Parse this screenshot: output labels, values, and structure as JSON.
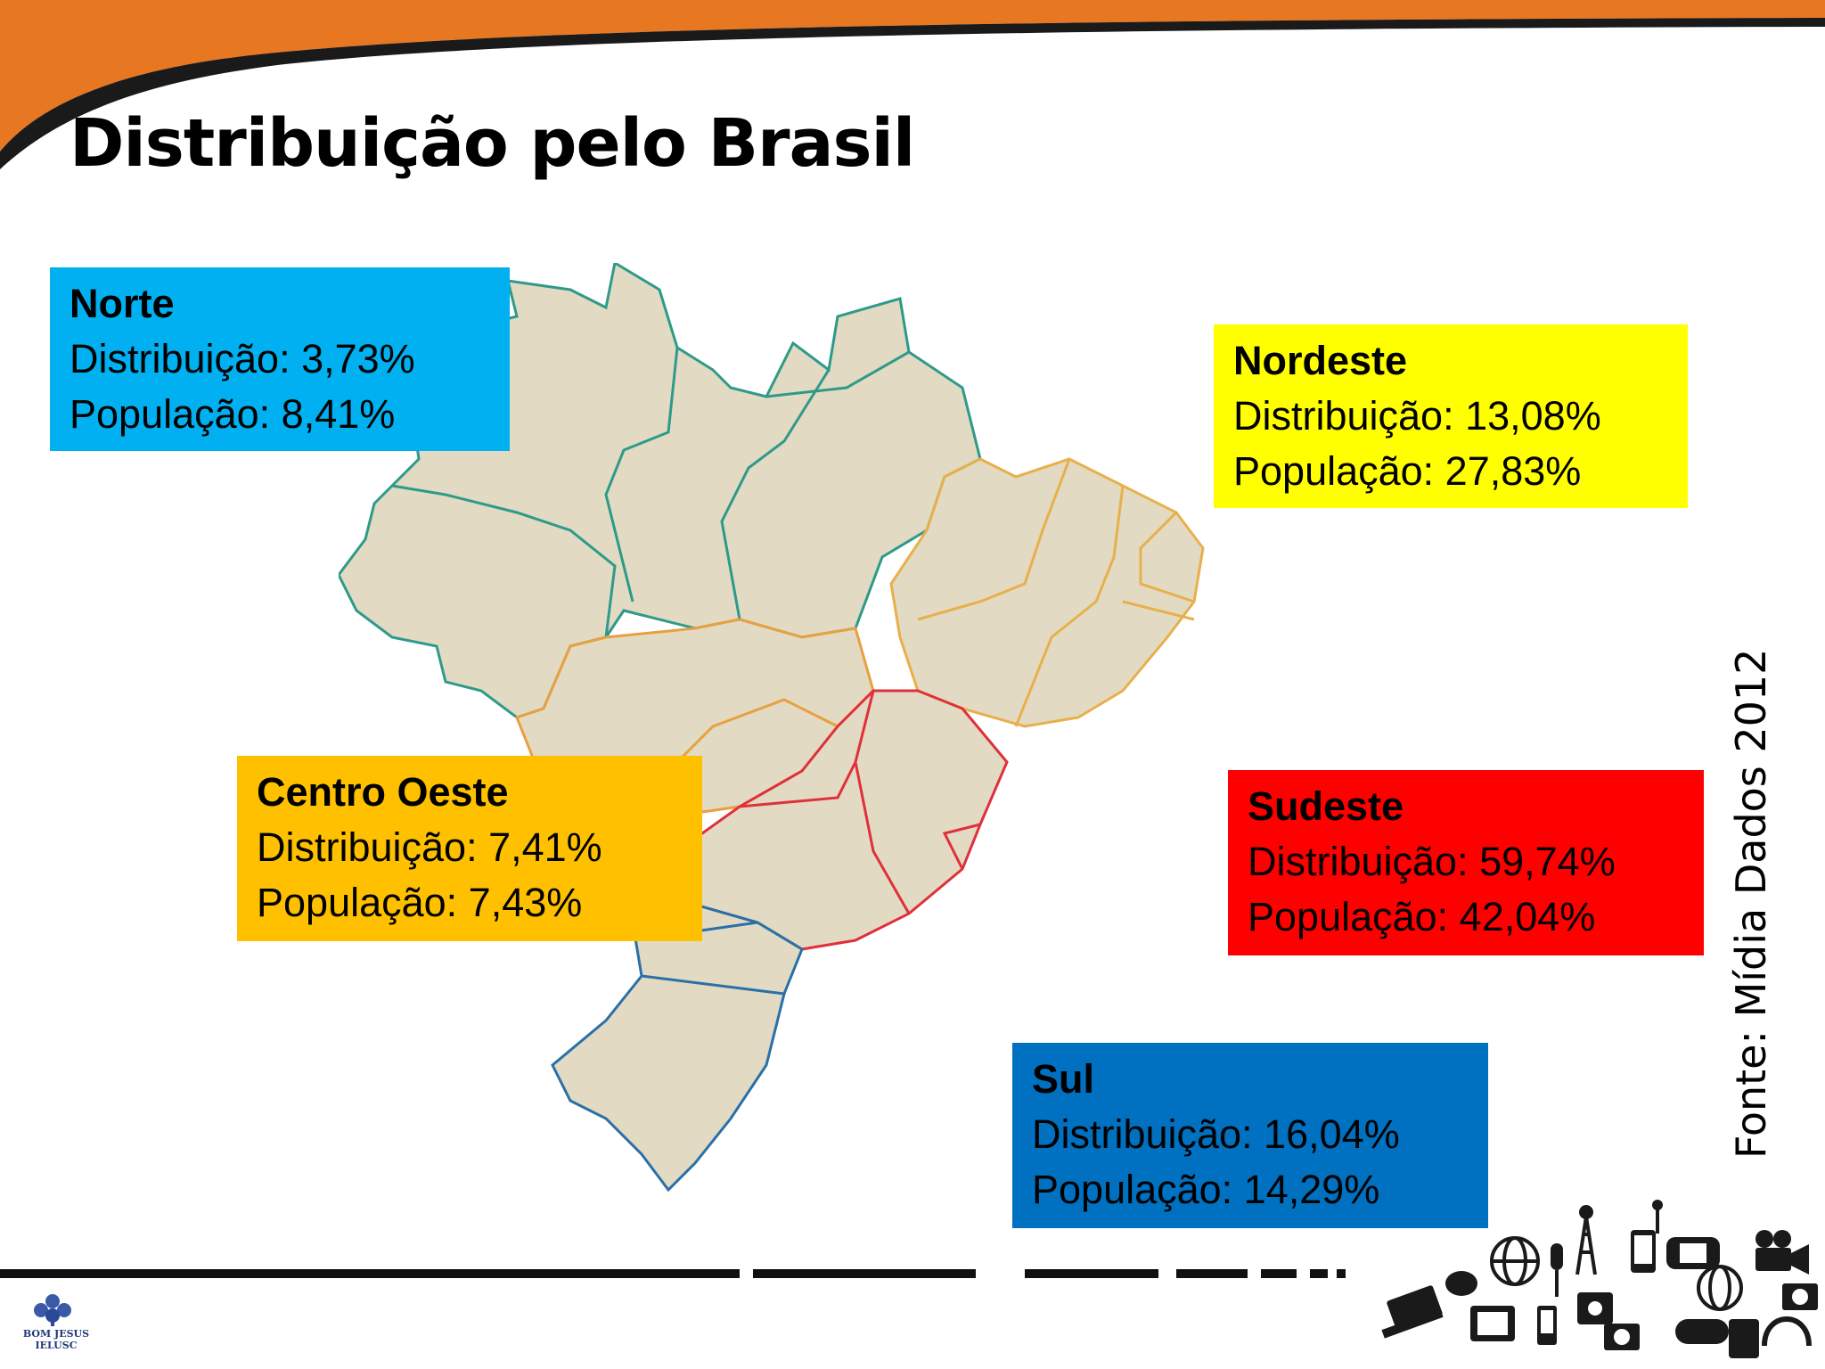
{
  "title": "Distribuição pelo Brasil",
  "regions": {
    "norte": {
      "name": "Norte",
      "distribution": "Distribuição: 3,73%",
      "population": "População: 8,41%",
      "color": "#00b0f0"
    },
    "nordeste": {
      "name": "Nordeste",
      "distribution": "Distribuição: 13,08%",
      "population": "População: 27,83%",
      "color": "#ffff00"
    },
    "centro_oeste": {
      "name": "Centro Oeste",
      "distribution": "Distribuição: 7,41%",
      "population": "População: 7,43%",
      "color": "#ffc000"
    },
    "sudeste": {
      "name": "Sudeste",
      "distribution": "Distribuição: 59,74%",
      "population": "População: 42,04%",
      "color": "#ff0000"
    },
    "sul": {
      "name": "Sul",
      "distribution": "Distribuição: 16,04%",
      "population": "População: 14,29%",
      "color": "#0070c0"
    }
  },
  "source": "Fonte: Mídia Dados 2012",
  "logo": {
    "line1": "BOM JESUS",
    "line2": "IELUSC"
  },
  "colors": {
    "header_accent": "#e87722",
    "map_fill": "#e2dac3",
    "border_norte": "#2e9a8a",
    "border_nordeste": "#e8b04a",
    "border_centro": "#e8a040",
    "border_sudeste": "#e0303a",
    "border_sul": "#2a70a8"
  }
}
